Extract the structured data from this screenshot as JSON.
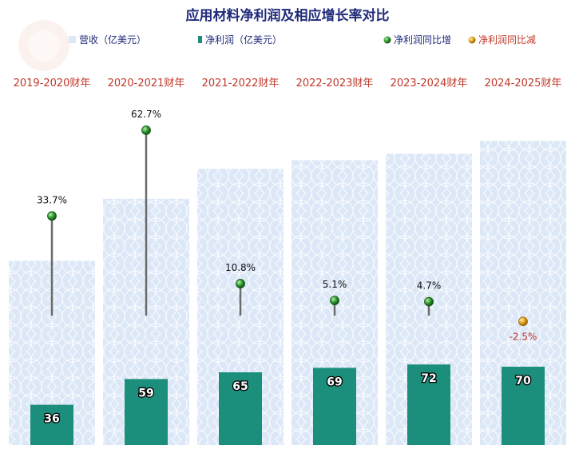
{
  "chart_data": {
    "type": "bar",
    "title": "应用材料净利润及相应增长率对比",
    "legend": {
      "revenue": "营收（亿美元）",
      "net_profit": "净利润（亿美元）",
      "growth_up": "净利润同比增",
      "growth_down": "净利润同比减"
    },
    "categories": [
      "2019-2020财年",
      "2020-2021财年",
      "2021-2022财年",
      "2022-2023财年",
      "2023-2024财年",
      "2024-2025财年"
    ],
    "series": [
      {
        "name": "营收（亿美元）",
        "values": [
          172,
          230,
          258,
          266,
          272,
          284
        ]
      },
      {
        "name": "净利润（亿美元）",
        "values": [
          36,
          59,
          65,
          69,
          72,
          70
        ]
      },
      {
        "name": "净利润同比增",
        "values": [
          33.7,
          62.7,
          10.8,
          5.1,
          4.7,
          -2.5
        ]
      }
    ],
    "value_labels": [
      "36",
      "59",
      "65",
      "69",
      "72",
      "70"
    ],
    "growth_labels": [
      "33.7%",
      "62.7%",
      "10.8%",
      "5.1%",
      "4.7%",
      "-2.5%"
    ],
    "colors": {
      "revenue": "#dce7f7",
      "net_profit": "#1b8f7c",
      "growth_up": "#2e9a2e",
      "growth_down": "#e0a020",
      "title": "#1f2a7a",
      "category": "#c0392b"
    },
    "legend_position": "top",
    "grid": false
  }
}
